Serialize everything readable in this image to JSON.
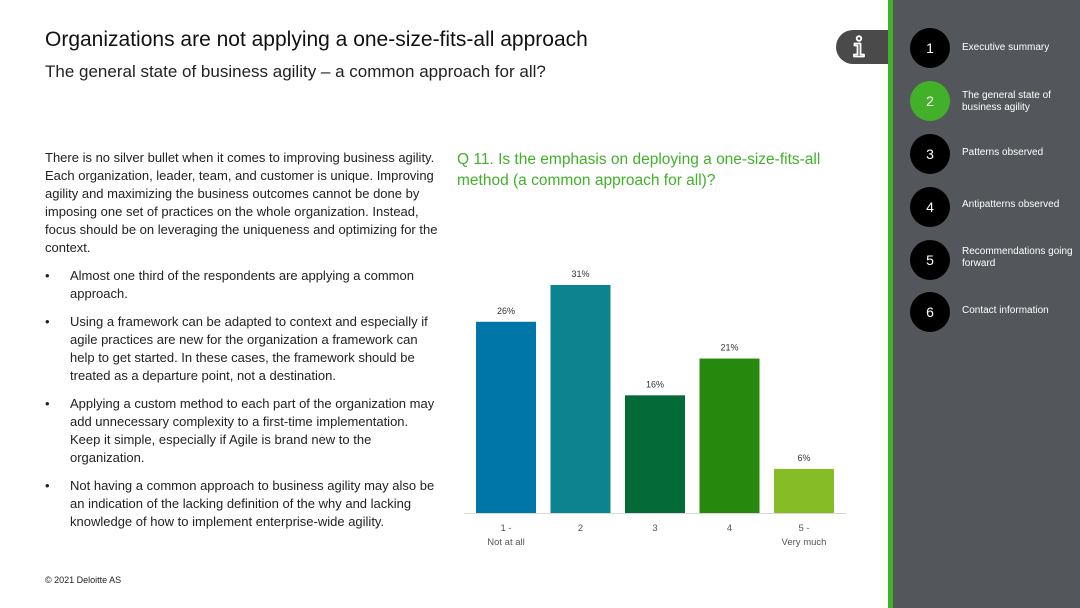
{
  "header": {
    "title": "Organizations are not applying a one-size-fits-all approach",
    "subtitle": "The general state of business agility – a common approach for all?"
  },
  "info_button": {
    "icon": "info-icon"
  },
  "body": {
    "intro": "There is no silver bullet when it comes to improving business agility. Each organization, leader, team, and customer is unique. Improving agility and maximizing the business outcomes cannot be done by imposing one set of practices on the whole organization. Instead, focus should be on leveraging the uniqueness and optimizing for the context.",
    "bullets": [
      "Almost one third of the respondents are applying a common approach.",
      "Using a framework can be adapted to context and especially if agile practices are new for the organization a framework can help to get started. In these cases, the framework should be treated as a departure point, not a destination.",
      "Applying a custom method to each part of the organization may add unnecessary complexity to a first-time implementation. Keep it simple, especially if Agile is brand new to the organization.",
      "Not having a common approach to business agility may also be an indication of the lacking definition of the why and lacking knowledge of how to implement enterprise-wide agility."
    ]
  },
  "chart_data": {
    "type": "bar",
    "title": "Q 11. Is the emphasis on deploying a one-size-fits-all method (a common approach for all)?",
    "categories": [
      "1 -\nNot at all",
      "2",
      "3",
      "4",
      "5 -\nVery much"
    ],
    "values": [
      26,
      31,
      16,
      21,
      6
    ],
    "value_labels": [
      "26%",
      "31%",
      "16%",
      "21%",
      "6%"
    ],
    "colors": [
      "#0076a8",
      "#0d8390",
      "#046a38",
      "#26890d",
      "#86bc25"
    ],
    "ylim": [
      0,
      31
    ],
    "xlabel": "",
    "ylabel": "",
    "grid": false,
    "legend": "none"
  },
  "sidebar": {
    "accent_color": "#43b02a",
    "items": [
      {
        "num": "1",
        "label": "Executive summary"
      },
      {
        "num": "2",
        "label": "The general state of business agility"
      },
      {
        "num": "3",
        "label": "Patterns observed"
      },
      {
        "num": "4",
        "label": "Antipatterns observed"
      },
      {
        "num": "5",
        "label": "Recommendations going forward"
      },
      {
        "num": "6",
        "label": "Contact information"
      }
    ]
  },
  "footer": {
    "copyright": "© 2021 Deloitte AS"
  }
}
